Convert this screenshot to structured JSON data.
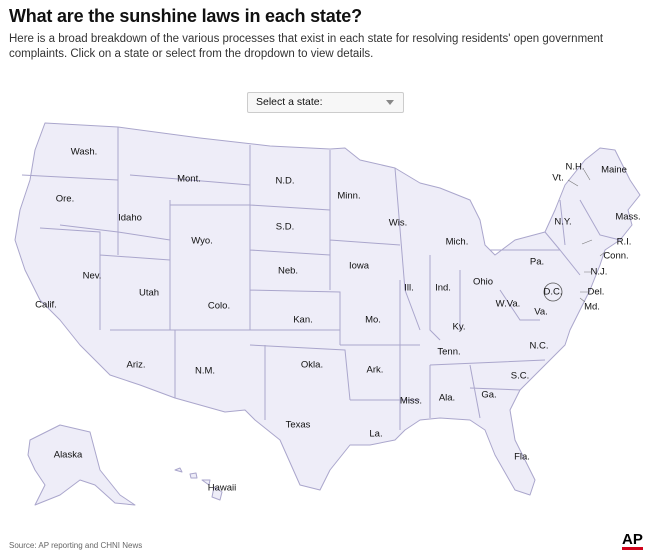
{
  "header": {
    "title": "What are the sunshine laws in each state?",
    "subtitle": "Here is a broad breakdown of the various processes that exist in each state for resolving residents' open government complaints. Click on a state or select from the dropdown to view details."
  },
  "dropdown": {
    "placeholder": "Select a state:"
  },
  "map": {
    "labels": [
      "Wash.",
      "Ore.",
      "Calif.",
      "Nev.",
      "Idaho",
      "Mont.",
      "Wyo.",
      "Utah",
      "Colo.",
      "Ariz.",
      "N.M.",
      "N.D.",
      "S.D.",
      "Neb.",
      "Kan.",
      "Okla.",
      "Texas",
      "Minn.",
      "Iowa",
      "Mo.",
      "Ark.",
      "La.",
      "Wis.",
      "Ill.",
      "Miss.",
      "Mich.",
      "Ind.",
      "Ohio",
      "Ky.",
      "Tenn.",
      "Ala.",
      "Ga.",
      "Fla.",
      "S.C.",
      "N.C.",
      "Va.",
      "W.Va.",
      "D.C.",
      "Md.",
      "Del.",
      "N.J.",
      "Pa.",
      "N.Y.",
      "Conn.",
      "R.I.",
      "Mass.",
      "Vt.",
      "N.H.",
      "Maine",
      "Alaska",
      "Hawaii"
    ]
  },
  "footer": {
    "source": "Source: AP reporting and CHNI News",
    "logo": "AP"
  }
}
